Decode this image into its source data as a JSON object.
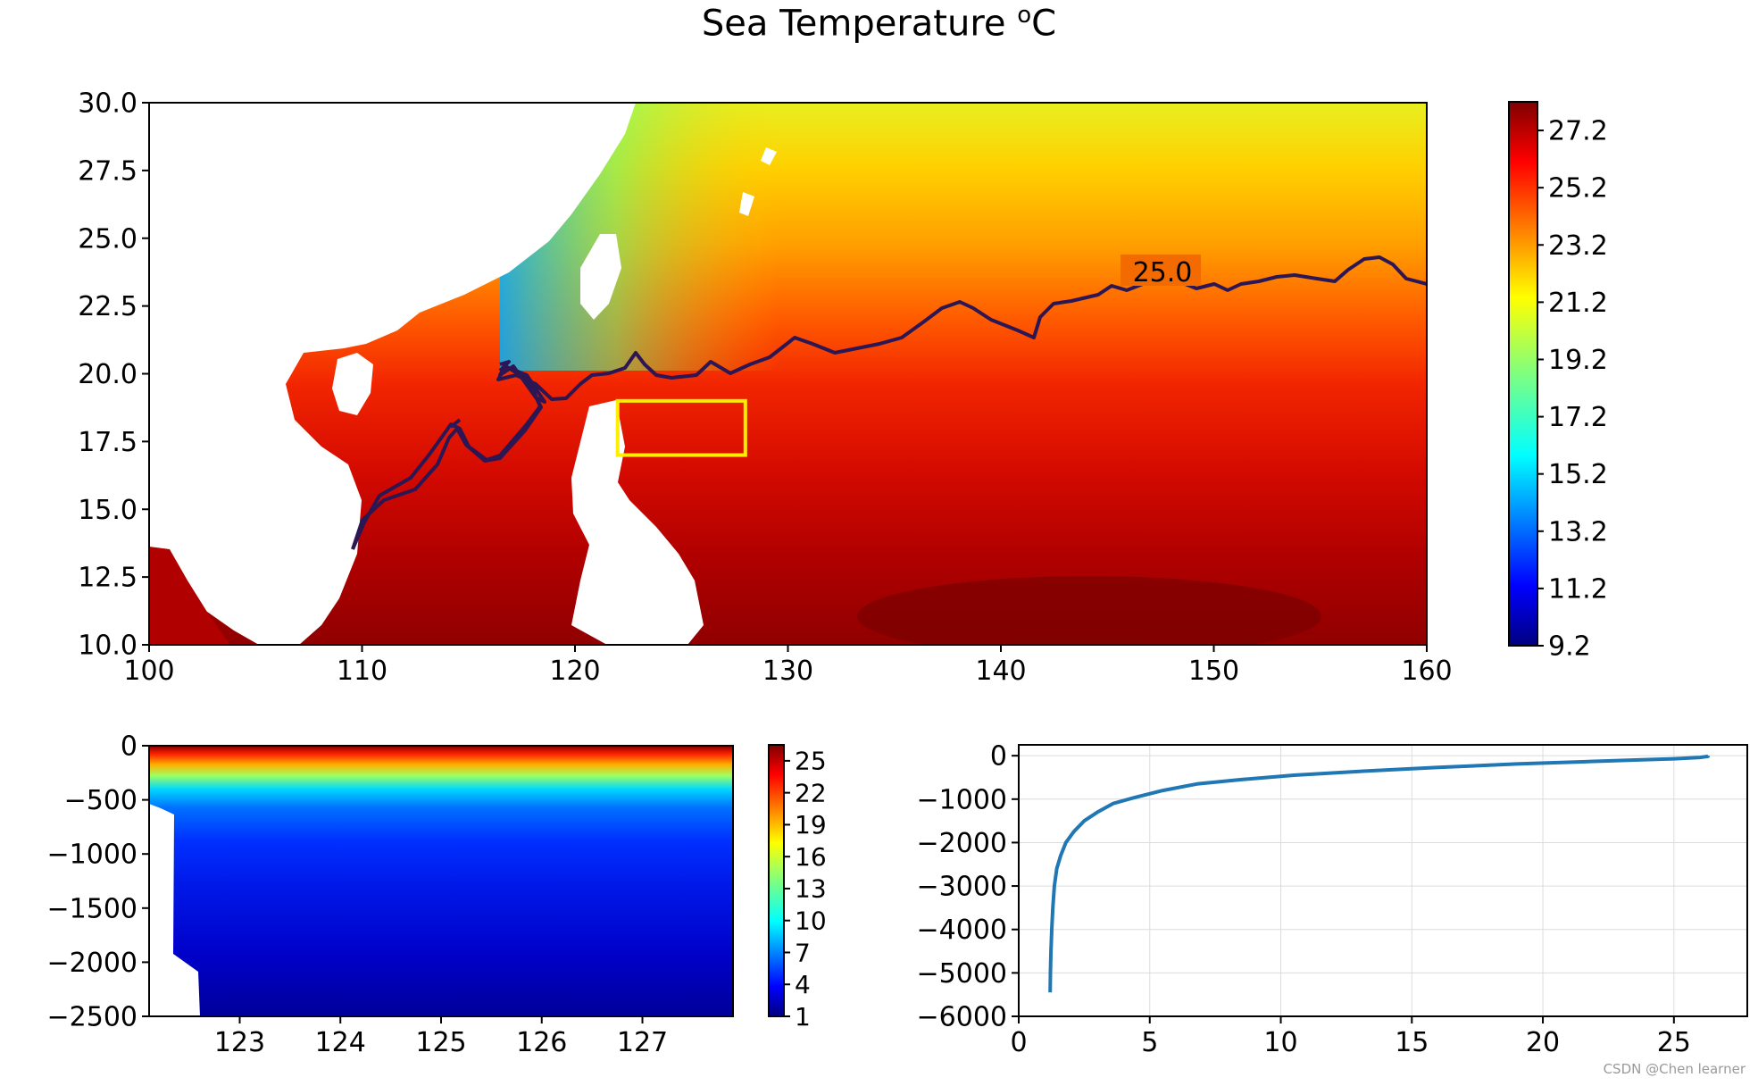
{
  "figure": {
    "title_main": "Sea Temperature ",
    "title_unit_sup": "o",
    "title_unit": "C",
    "watermark": "CSDN @Chen learner"
  },
  "chart_data": [
    {
      "type": "heatmap",
      "name": "sst-map",
      "x_ticks": [
        "100",
        "110",
        "120",
        "130",
        "140",
        "150",
        "160"
      ],
      "y_ticks": [
        "10.0",
        "12.5",
        "15.0",
        "17.5",
        "20.0",
        "22.5",
        "25.0",
        "27.5",
        "30.0"
      ],
      "xlim": [
        100,
        160
      ],
      "ylim": [
        10,
        30
      ],
      "colorbar_ticks": [
        "9.2",
        "11.2",
        "13.2",
        "15.2",
        "17.2",
        "19.2",
        "21.2",
        "23.2",
        "25.2",
        "27.2"
      ],
      "colorbar_range": [
        9.2,
        28.2
      ],
      "colormap": "jet",
      "contour": {
        "level": 25.0,
        "label": "25.0",
        "color": "#2c1654"
      },
      "selection_box": {
        "lon": [
          122,
          128
        ],
        "lat": [
          17,
          19
        ],
        "color": "#ffee00"
      }
    },
    {
      "type": "heatmap",
      "name": "depth-section",
      "x_ticks": [
        "123",
        "124",
        "125",
        "126",
        "127"
      ],
      "y_ticks": [
        "0",
        "−500",
        "−1000",
        "−1500",
        "−2000",
        "−2500"
      ],
      "xlim": [
        122.1,
        127.9
      ],
      "ylim": [
        -2500,
        0
      ],
      "colorbar_ticks": [
        "1",
        "4",
        "7",
        "10",
        "13",
        "16",
        "19",
        "22",
        "25"
      ],
      "colorbar_range": [
        1,
        26.5
      ],
      "colormap": "jet"
    },
    {
      "type": "line",
      "name": "temperature-profile",
      "x_ticks": [
        "0",
        "5",
        "10",
        "15",
        "20",
        "25"
      ],
      "y_ticks": [
        "0",
        "−1000",
        "−2000",
        "−3000",
        "−4000",
        "−5000",
        "−6000"
      ],
      "xlim": [
        0,
        27.8
      ],
      "ylim": [
        -6000,
        250
      ],
      "grid": true,
      "series": [
        {
          "color": "#1f77b4",
          "x": [
            1.2,
            1.21,
            1.23,
            1.26,
            1.3,
            1.36,
            1.45,
            1.6,
            1.8,
            2.1,
            2.5,
            3.0,
            3.6,
            4.5,
            5.5,
            6.8,
            8.5,
            10.5,
            13.0,
            16.0,
            19.0,
            21.5,
            23.5,
            25.0,
            26.0,
            26.3,
            26.3
          ],
          "y": [
            -5450,
            -5000,
            -4500,
            -4000,
            -3500,
            -3000,
            -2600,
            -2300,
            -2000,
            -1750,
            -1500,
            -1300,
            -1100,
            -950,
            -800,
            -650,
            -550,
            -450,
            -360,
            -270,
            -190,
            -140,
            -100,
            -70,
            -40,
            -15,
            0
          ]
        }
      ]
    }
  ]
}
